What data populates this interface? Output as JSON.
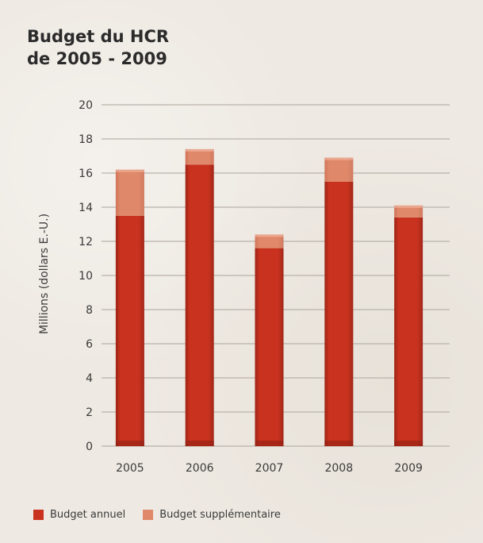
{
  "chart_data": {
    "type": "bar",
    "stacked": true,
    "title_lines": [
      "Budget du HCR",
      "de 2005 - 2009"
    ],
    "ylabel": "Millions (dollars E.-U.)",
    "xlabel": "",
    "categories": [
      "2005",
      "2006",
      "2007",
      "2008",
      "2009"
    ],
    "series": [
      {
        "name": "Budget annuel",
        "color": "#c8321e",
        "values": [
          13.5,
          16.5,
          11.6,
          15.5,
          13.4
        ]
      },
      {
        "name": "Budget supplémentaire",
        "color": "#e0896a",
        "values": [
          2.7,
          0.9,
          0.8,
          1.4,
          0.7
        ]
      }
    ],
    "ylim": [
      0,
      20
    ],
    "yticks": [
      0,
      2,
      4,
      6,
      8,
      10,
      12,
      14,
      16,
      18,
      20
    ],
    "grid": true,
    "legend_position": "bottom-left"
  }
}
